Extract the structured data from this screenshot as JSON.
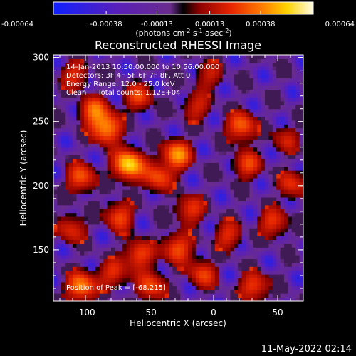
{
  "chart_data": {
    "type": "heatmap",
    "title": "Reconstructed RHESSI Image",
    "xlabel": "Heliocentric X (arcsec)",
    "ylabel": "Heliocentric Y (arcsec)",
    "xlim": [
      -125,
      70
    ],
    "ylim": [
      110,
      302
    ],
    "xticks": [
      -100,
      -50,
      0,
      50
    ],
    "yticks": [
      150,
      200,
      250,
      300
    ],
    "colorbar": {
      "range": [
        -0.00064,
        0.00064
      ],
      "ticks": [
        "-0.00064",
        "-0.00038",
        "-0.00013",
        "0.00013",
        "0.00038",
        "0.00064"
      ],
      "unit_base": "(photons cm",
      "unit_exp1": "-2",
      "unit_mid": " s",
      "unit_exp2": "-1",
      "unit_mid2": " asec",
      "unit_exp3": "-2",
      "unit_end": ")",
      "colors": [
        "#1020ff",
        "#5a1fb8",
        "#6a2c8c",
        "#000000",
        "#8a0000",
        "#e52400",
        "#ff7a00",
        "#ffd400",
        "#fffbe8"
      ]
    },
    "annotations": {
      "time": "14-Jan-2013 10:50:00.000 to 10:56:00.000",
      "detectors": "Detectors: 3F 4F 5F 6F 7F 8F, Att 0",
      "energy": "Energy Range: 12.0 - 25.0 keV",
      "clean": "Clean     Total counts: 1.12E+04",
      "peak": "Position of Peak = [-68,215]"
    },
    "peak": [
      -68,
      215
    ],
    "sources": [
      {
        "x": -68,
        "y": 215,
        "intensity": 1.0
      },
      {
        "x": -85,
        "y": 243,
        "intensity": 0.78
      },
      {
        "x": -30,
        "y": 223,
        "intensity": 0.75
      },
      {
        "x": -95,
        "y": 257,
        "intensity": 0.62
      },
      {
        "x": -45,
        "y": 205,
        "intensity": 0.55
      },
      {
        "x": -105,
        "y": 205,
        "intensity": 0.6
      },
      {
        "x": -75,
        "y": 175,
        "intensity": 0.55
      },
      {
        "x": -20,
        "y": 180,
        "intensity": 0.5
      },
      {
        "x": -30,
        "y": 150,
        "intensity": 0.6
      },
      {
        "x": -60,
        "y": 145,
        "intensity": 0.55
      },
      {
        "x": -105,
        "y": 120,
        "intensity": 0.75
      },
      {
        "x": -80,
        "y": 130,
        "intensity": 0.45
      },
      {
        "x": -50,
        "y": 120,
        "intensity": 0.55
      },
      {
        "x": -10,
        "y": 130,
        "intensity": 0.5
      },
      {
        "x": 10,
        "y": 160,
        "intensity": 0.45
      },
      {
        "x": 30,
        "y": 120,
        "intensity": 0.55
      },
      {
        "x": 45,
        "y": 170,
        "intensity": 0.5
      },
      {
        "x": 60,
        "y": 200,
        "intensity": 0.45
      },
      {
        "x": 20,
        "y": 245,
        "intensity": 0.65
      },
      {
        "x": 25,
        "y": 215,
        "intensity": 0.5
      },
      {
        "x": 55,
        "y": 235,
        "intensity": 0.35
      },
      {
        "x": -15,
        "y": 260,
        "intensity": 0.4
      },
      {
        "x": -112,
        "y": 165,
        "intensity": 0.45
      },
      {
        "x": -60,
        "y": 268,
        "intensity": 0.5
      },
      {
        "x": -110,
        "y": 285,
        "intensity": 0.45
      },
      {
        "x": -5,
        "y": 285,
        "intensity": 0.35
      }
    ]
  },
  "footer": {
    "timestamp": "11-May-2022 02:14"
  }
}
